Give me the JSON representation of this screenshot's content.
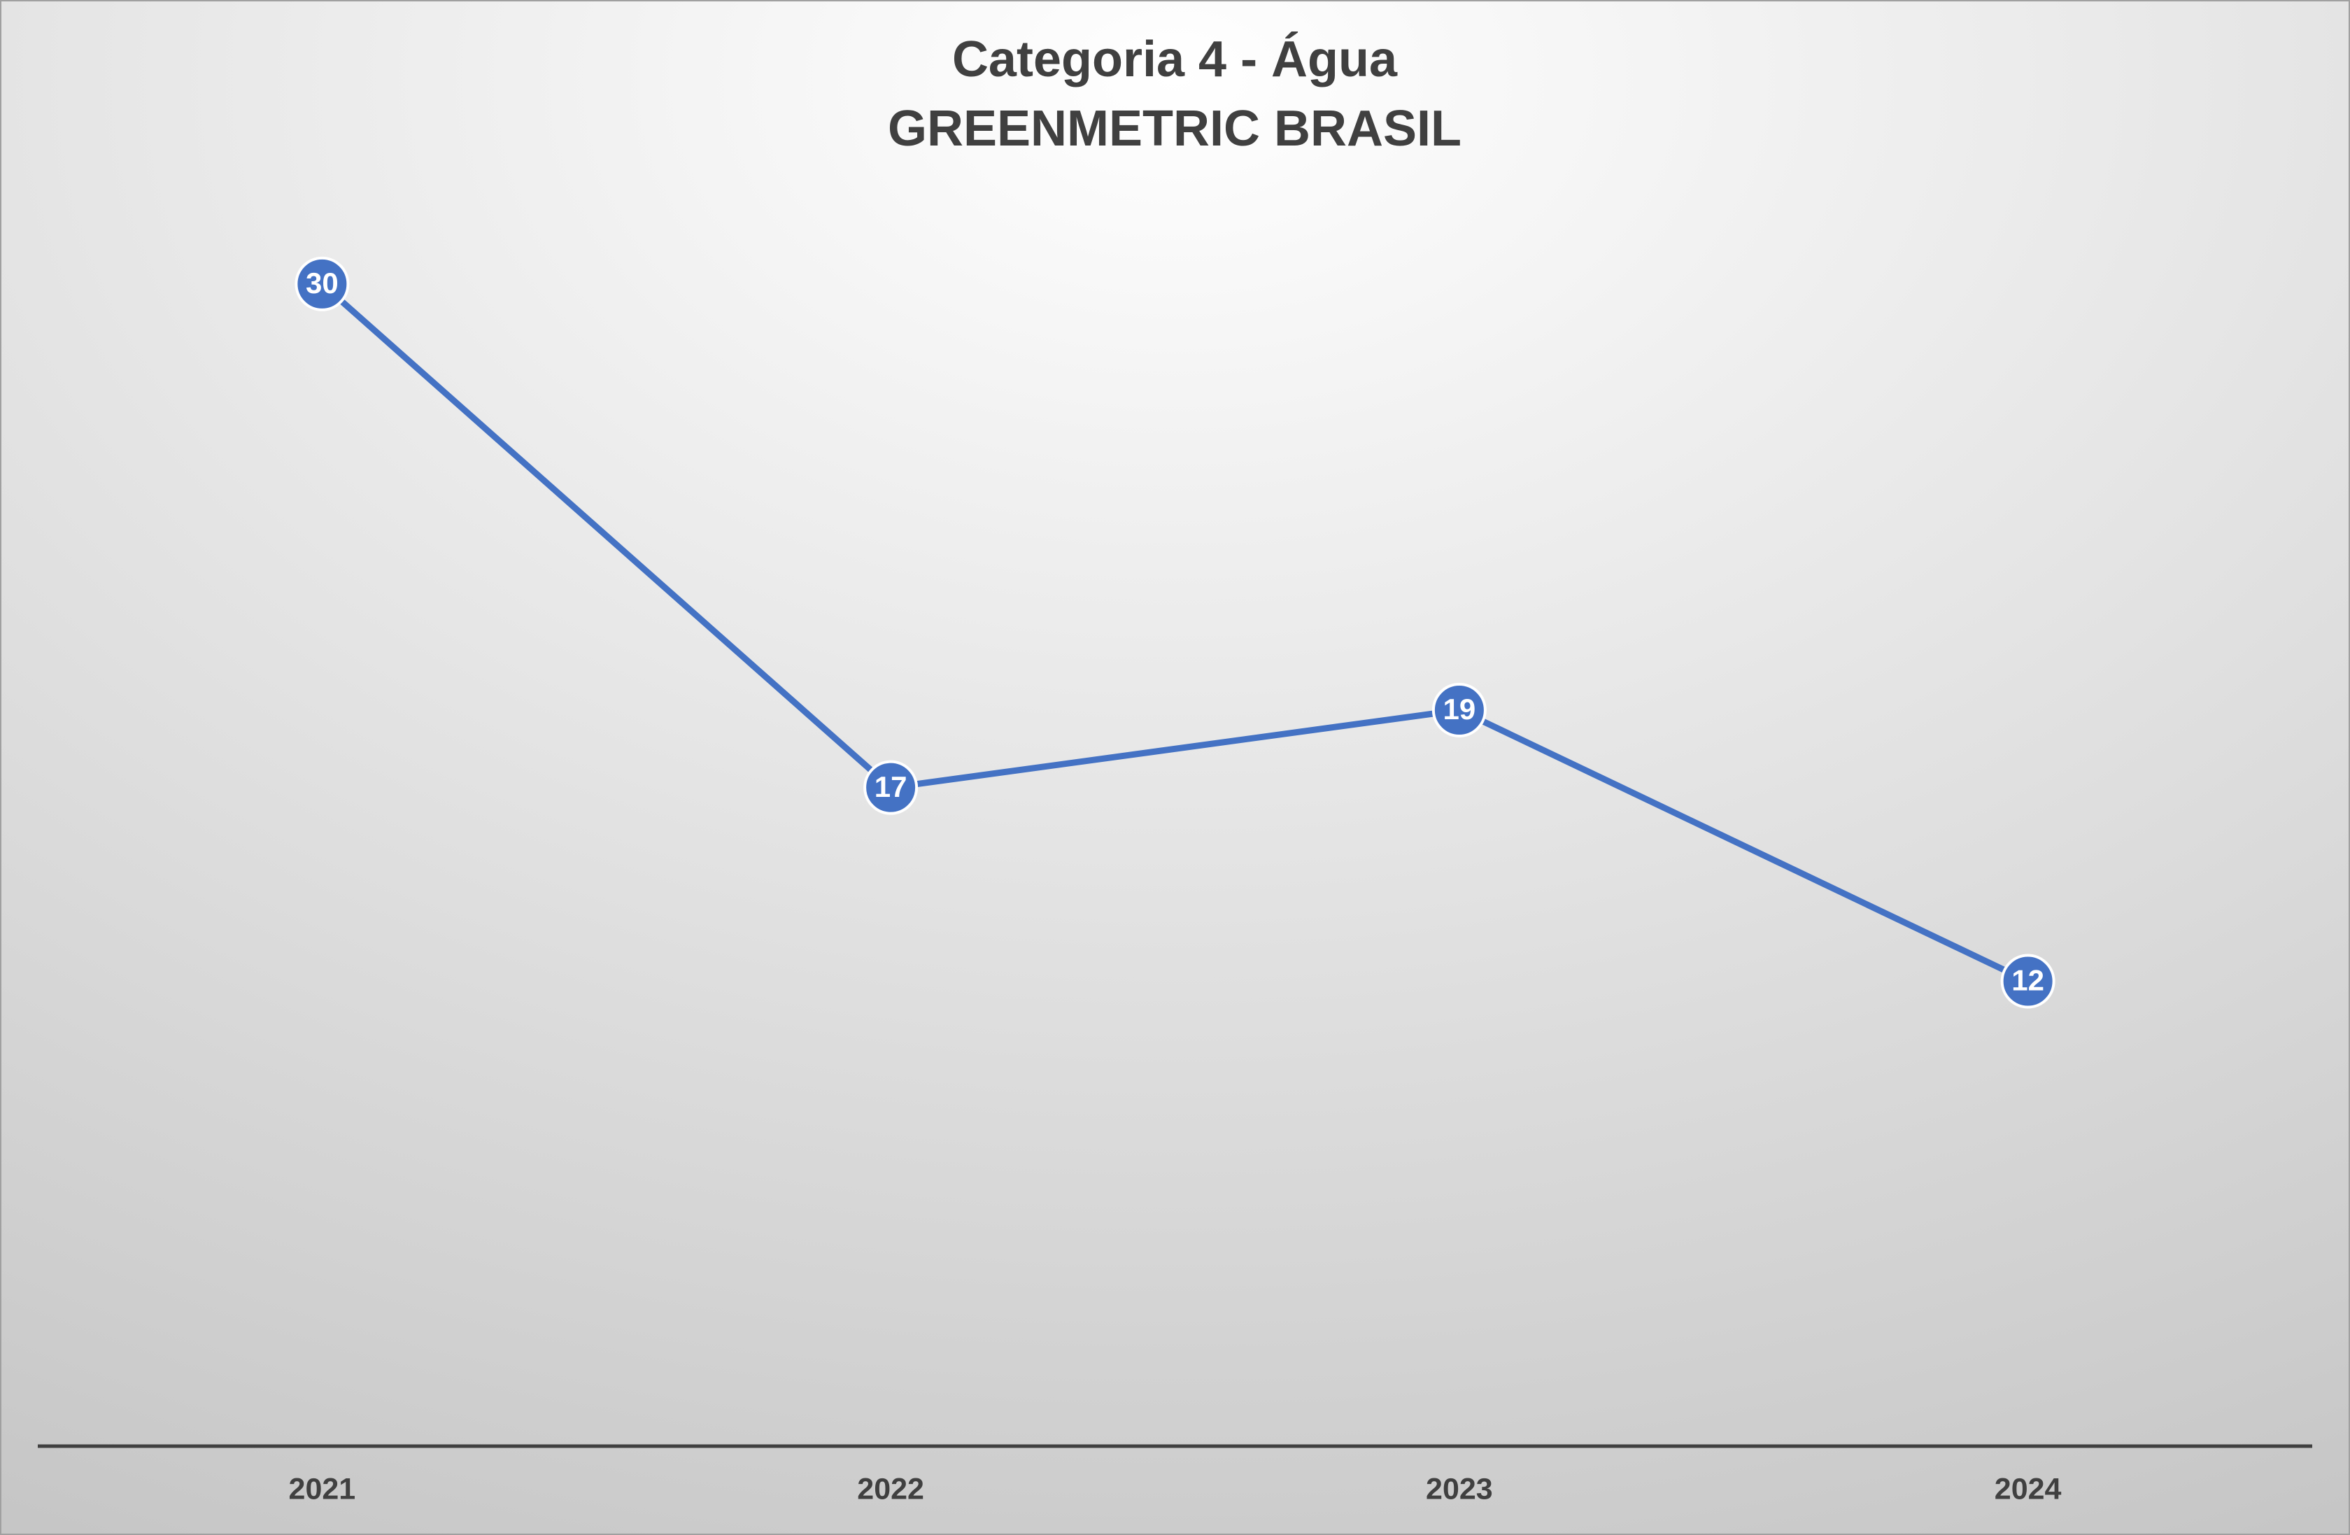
{
  "chart_data": {
    "type": "line",
    "title": "Categoria 4 - Água",
    "subtitle": "GREENMETRIC BRASIL",
    "categories": [
      "2021",
      "2022",
      "2023",
      "2024"
    ],
    "series": [
      {
        "name": "Categoria 4 - Água",
        "color": "#4472c4",
        "values": [
          30,
          17,
          19,
          12
        ]
      }
    ],
    "ylim": [
      0,
      35
    ],
    "grid": false
  }
}
